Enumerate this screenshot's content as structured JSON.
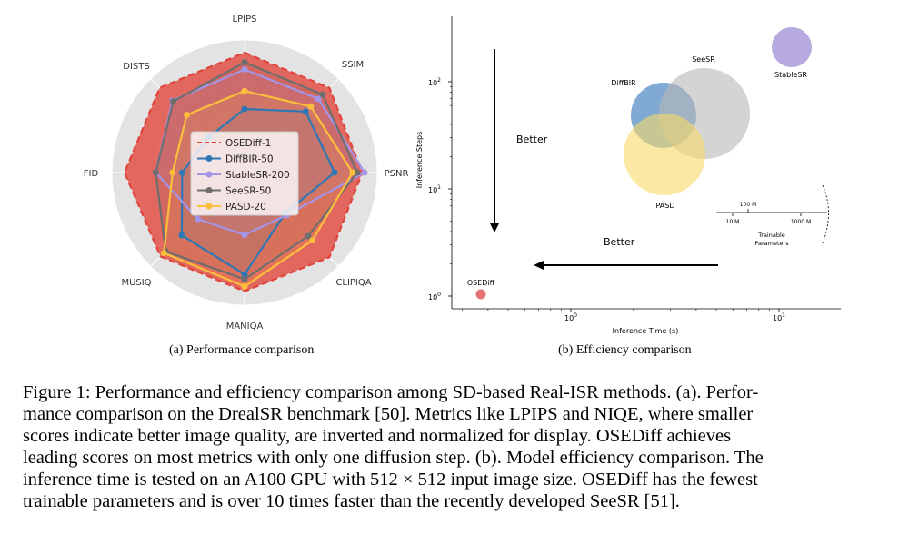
{
  "radar": {
    "axes": [
      "LPIPS",
      "SSIM",
      "PSNR",
      "CLIPIQA",
      "MANIQA",
      "MUSIQ",
      "FID",
      "DISTS"
    ],
    "legend": [
      {
        "name": "OSEDiff-1",
        "color": "#e0443a",
        "style": "dashed"
      },
      {
        "name": "DiffBIR-50",
        "color": "#2f77b4",
        "style": "solid"
      },
      {
        "name": "StableSR-200",
        "color": "#a495e8",
        "style": "solid"
      },
      {
        "name": "SeeSR-50",
        "color": "#6e6e6e",
        "style": "solid"
      },
      {
        "name": "PASD-20",
        "color": "#fbbf3c",
        "style": "solid"
      }
    ]
  },
  "efficiency": {
    "ylabel": "Inference Steps",
    "xlabel": "Inference Time (s)",
    "yticks": [
      "10",
      "10",
      "10"
    ],
    "yticks_exp": [
      "0",
      "1",
      "2"
    ],
    "xticks": [
      "10",
      "10"
    ],
    "xticks_exp": [
      "0",
      "1"
    ],
    "better_vertical": "Better",
    "better_horizontal": "Better",
    "methods": [
      "OSEDiff",
      "DiffBIR",
      "SeeSR",
      "StableSR",
      "PASD"
    ],
    "size_legend": {
      "top": "100 M",
      "left": "10 M",
      "right": "1000 M",
      "title1": "Trainable",
      "title2": "Parameters"
    }
  },
  "chart_data": [
    {
      "type": "radar",
      "categories": [
        "LPIPS",
        "SSIM",
        "PSNR",
        "CLIPIQA",
        "MANIQA",
        "MUSIQ",
        "FID",
        "DISTS"
      ],
      "range": [
        0,
        1
      ],
      "series": [
        {
          "name": "OSEDiff-1",
          "values": [
            1.0,
            1.0,
            0.98,
            1.0,
            0.99,
            0.99,
            1.0,
            1.0
          ]
        },
        {
          "name": "DiffBIR-50",
          "values": [
            0.53,
            0.72,
            0.75,
            0.48,
            0.85,
            0.74,
            0.52,
            0.42
          ]
        },
        {
          "name": "StableSR-200",
          "values": [
            0.86,
            0.87,
            1.0,
            0.5,
            0.52,
            0.55,
            0.74,
            0.85
          ]
        },
        {
          "name": "SeeSR-50",
          "values": [
            0.92,
            0.92,
            0.94,
            0.75,
            0.89,
            0.93,
            0.74,
            0.84
          ]
        },
        {
          "name": "PASD-20",
          "values": [
            0.68,
            0.78,
            0.9,
            0.8,
            0.95,
            0.95,
            0.6,
            0.68
          ]
        }
      ]
    },
    {
      "type": "scatter",
      "xlabel": "Inference Time (s)",
      "ylabel": "Inference Steps",
      "xscale": "log",
      "yscale": "log",
      "series": [
        {
          "name": "OSEDiff",
          "x": 0.35,
          "y": 1,
          "params_M": 8.5
        },
        {
          "name": "DiffBIR",
          "x": 2.9,
          "y": 50,
          "params_M": 380
        },
        {
          "name": "SeeSR",
          "x": 4.3,
          "y": 50,
          "params_M": 750
        },
        {
          "name": "StableSR",
          "x": 12.0,
          "y": 200,
          "params_M": 150
        },
        {
          "name": "PASD",
          "x": 3.0,
          "y": 20,
          "params_M": 620
        }
      ]
    }
  ],
  "subcaptions": {
    "a": "(a) Performance comparison",
    "b": "(b) Efficiency comparison"
  },
  "caption": {
    "lines": [
      "Figure 1: Performance and efficiency comparison among SD-based Real-ISR methods. (a). Perfor-",
      "mance comparison on the DrealSR benchmark [50]. Metrics like LPIPS and NIQE, where smaller",
      "scores indicate better image quality, are inverted and normalized for display.  OSEDiff achieves",
      "leading scores on most metrics with only one diffusion step. (b). Model efficiency comparison. The",
      "inference time is tested on an A100 GPU with 512 × 512 input image size. OSEDiff has the fewest",
      "trainable parameters and is over 10 times faster than the recently developed SeeSR [51]."
    ]
  }
}
